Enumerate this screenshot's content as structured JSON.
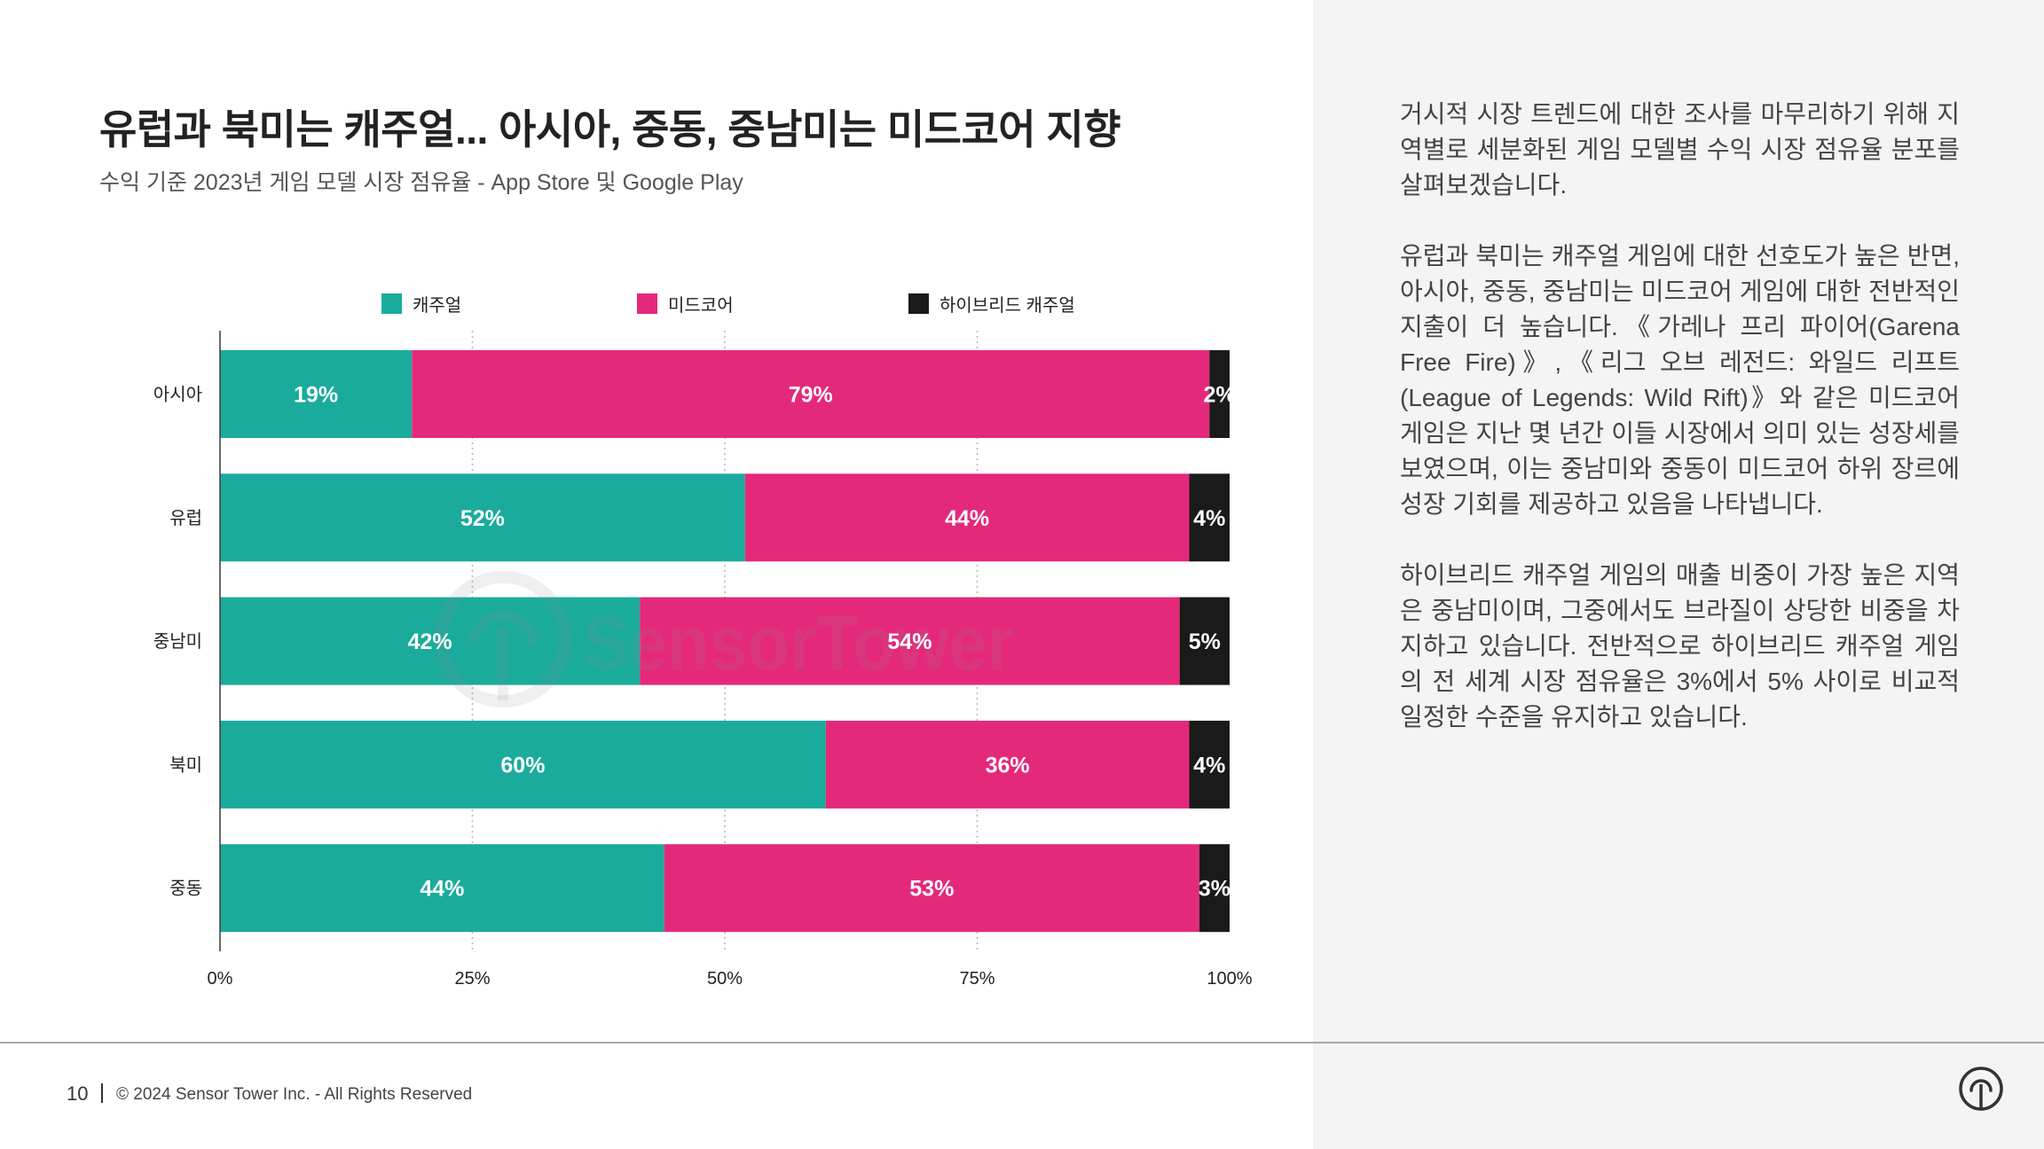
{
  "chart_data": {
    "type": "bar",
    "orientation": "horizontal",
    "stacked": true,
    "title": "유럽과 북미는 캐주얼... 아시아, 중동, 중남미는 미드코어 지향",
    "subtitle": "수익 기준 2023년 게임 모델 시장 점유율 - App Store 및 Google Play",
    "categories": [
      "아시아",
      "유럽",
      "중남미",
      "북미",
      "중동"
    ],
    "series": [
      {
        "name": "캐주얼",
        "color": "#1aab9c",
        "values": [
          19,
          52,
          42,
          60,
          44
        ]
      },
      {
        "name": "미드코어",
        "color": "#e5297a",
        "values": [
          79,
          44,
          54,
          36,
          53
        ]
      },
      {
        "name": "하이브리드 캐주얼",
        "color": "#1a1a1a",
        "values": [
          2,
          4,
          5,
          4,
          3
        ]
      }
    ],
    "unit": "%",
    "xlim": [
      0,
      100
    ],
    "xtick_labels": [
      "0%",
      "25%",
      "50%",
      "75%",
      "100%"
    ],
    "grid": "vertical-dotted",
    "legend": "top"
  },
  "watermark": {
    "text": "SensorTower"
  },
  "panel": {
    "paragraphs": [
      "거시적 시장 트렌드에 대한 조사를 마무리하기 위해 지역별로 세분화된 게임 모델별 수익 시장 점유율 분포를 살펴보겠습니다.",
      "유럽과 북미는 캐주얼 게임에 대한 선호도가 높은 반면, 아시아, 중동, 중남미는 미드코어 게임에 대한 전반적인 지출이 더 높습니다.《가레나 프리 파이어(Garena Free Fire)》,《리그 오브 레전드: 와일드 리프트(League of Legends: Wild Rift)》와 같은 미드코어 게임은 지난 몇 년간 이들 시장에서 의미 있는 성장세를 보였으며, 이는 중남미와 중동이 미드코어 하위 장르에 성장 기회를 제공하고 있음을 나타냅니다.",
      "하이브리드 캐주얼 게임의 매출 비중이 가장 높은 지역은 중남미이며, 그중에서도 브라질이 상당한 비중을 차지하고 있습니다. 전반적으로 하이브리드 캐주얼 게임의 전 세계 시장 점유율은 3%에서 5% 사이로 비교적 일정한 수준을 유지하고 있습니다."
    ]
  },
  "footer": {
    "page_number": "10",
    "copyright": "© 2024 Sensor Tower Inc. - All Rights Reserved"
  },
  "icons": {
    "brand_logo": "sensor-tower-logo-icon"
  },
  "colors": {
    "panel_background": "#f4f4f4",
    "title_text": "#222222",
    "body_text": "#444444"
  }
}
